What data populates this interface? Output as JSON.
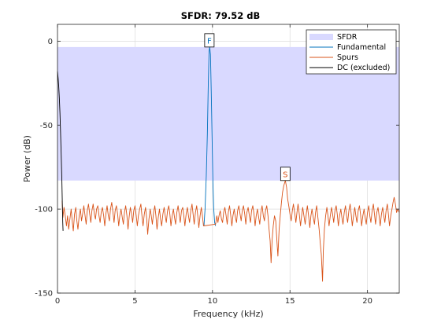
{
  "chart_data": {
    "type": "line",
    "title": "SFDR:  79.52 dB",
    "xlabel": "Frequency (kHz)",
    "ylabel": "Power (dB)",
    "xlim": [
      0,
      22.05
    ],
    "ylim": [
      -150,
      10
    ],
    "xticks": [
      0,
      5,
      10,
      15,
      20
    ],
    "yticks": [
      0,
      -50,
      -100,
      -150
    ],
    "grid": true,
    "legend_position": "top-right",
    "sfdr_band": {
      "name": "SFDR",
      "y_top": -3.5,
      "y_bottom": -83.0,
      "color": "#d9d9ff"
    },
    "markers": [
      {
        "label": "F",
        "x": 9.8,
        "y": -3.5,
        "color": "#0072bd"
      },
      {
        "label": "S",
        "x": 14.7,
        "y": -83.0,
        "color": "#d95319"
      }
    ],
    "series": [
      {
        "name": "Fundamental",
        "color": "#0072bd",
        "points": [
          [
            9.45,
            -110
          ],
          [
            9.52,
            -100
          ],
          [
            9.6,
            -80
          ],
          [
            9.67,
            -55
          ],
          [
            9.73,
            -25
          ],
          [
            9.78,
            -6
          ],
          [
            9.82,
            -3.5
          ],
          [
            9.87,
            -8
          ],
          [
            9.92,
            -30
          ],
          [
            9.98,
            -60
          ],
          [
            10.03,
            -85
          ],
          [
            10.08,
            -100
          ],
          [
            10.14,
            -108
          ],
          [
            10.2,
            -110
          ]
        ]
      },
      {
        "name": "Spurs",
        "color": "#d95319",
        "points": [
          [
            0.3,
            -95
          ],
          [
            0.35,
            -105
          ],
          [
            0.42,
            -99
          ],
          [
            0.5,
            -104
          ],
          [
            0.58,
            -110
          ],
          [
            0.65,
            -104
          ],
          [
            0.72,
            -112
          ],
          [
            0.8,
            -106
          ],
          [
            0.88,
            -100
          ],
          [
            0.95,
            -107
          ],
          [
            1.02,
            -113
          ],
          [
            1.1,
            -103
          ],
          [
            1.18,
            -99
          ],
          [
            1.25,
            -107
          ],
          [
            1.32,
            -112
          ],
          [
            1.4,
            -104
          ],
          [
            1.48,
            -100
          ],
          [
            1.55,
            -107
          ],
          [
            1.62,
            -103
          ],
          [
            1.7,
            -98
          ],
          [
            1.78,
            -104
          ],
          [
            1.85,
            -109
          ],
          [
            1.92,
            -101
          ],
          [
            2.0,
            -97
          ],
          [
            2.08,
            -103
          ],
          [
            2.15,
            -108
          ],
          [
            2.22,
            -101
          ],
          [
            2.3,
            -97
          ],
          [
            2.38,
            -103
          ],
          [
            2.45,
            -106
          ],
          [
            2.52,
            -100
          ],
          [
            2.6,
            -98
          ],
          [
            2.68,
            -104
          ],
          [
            2.75,
            -108
          ],
          [
            2.82,
            -102
          ],
          [
            2.9,
            -99
          ],
          [
            2.98,
            -104
          ],
          [
            3.05,
            -110
          ],
          [
            3.12,
            -103
          ],
          [
            3.2,
            -98
          ],
          [
            3.28,
            -104
          ],
          [
            3.35,
            -107
          ],
          [
            3.42,
            -100
          ],
          [
            3.5,
            -96
          ],
          [
            3.58,
            -102
          ],
          [
            3.65,
            -108
          ],
          [
            3.72,
            -101
          ],
          [
            3.8,
            -98
          ],
          [
            3.88,
            -103
          ],
          [
            3.95,
            -110
          ],
          [
            4.02,
            -104
          ],
          [
            4.1,
            -100
          ],
          [
            4.18,
            -105
          ],
          [
            4.25,
            -109
          ],
          [
            4.32,
            -102
          ],
          [
            4.4,
            -98
          ],
          [
            4.48,
            -104
          ],
          [
            4.55,
            -112
          ],
          [
            4.62,
            -105
          ],
          [
            4.7,
            -99
          ],
          [
            4.78,
            -103
          ],
          [
            4.85,
            -108
          ],
          [
            4.92,
            -101
          ],
          [
            5.0,
            -98
          ],
          [
            5.08,
            -104
          ],
          [
            5.15,
            -110
          ],
          [
            5.22,
            -104
          ],
          [
            5.3,
            -100
          ],
          [
            5.38,
            -97
          ],
          [
            5.45,
            -104
          ],
          [
            5.52,
            -110
          ],
          [
            5.6,
            -103
          ],
          [
            5.68,
            -99
          ],
          [
            5.75,
            -105
          ],
          [
            5.82,
            -115
          ],
          [
            5.9,
            -106
          ],
          [
            5.98,
            -100
          ],
          [
            6.05,
            -104
          ],
          [
            6.12,
            -109
          ],
          [
            6.2,
            -102
          ],
          [
            6.28,
            -98
          ],
          [
            6.35,
            -104
          ],
          [
            6.42,
            -112
          ],
          [
            6.5,
            -105
          ],
          [
            6.58,
            -100
          ],
          [
            6.65,
            -106
          ],
          [
            6.72,
            -110
          ],
          [
            6.8,
            -103
          ],
          [
            6.88,
            -99
          ],
          [
            6.95,
            -104
          ],
          [
            7.02,
            -108
          ],
          [
            7.1,
            -101
          ],
          [
            7.18,
            -98
          ],
          [
            7.25,
            -103
          ],
          [
            7.32,
            -110
          ],
          [
            7.4,
            -104
          ],
          [
            7.48,
            -100
          ],
          [
            7.55,
            -105
          ],
          [
            7.62,
            -109
          ],
          [
            7.7,
            -102
          ],
          [
            7.78,
            -98
          ],
          [
            7.85,
            -103
          ],
          [
            7.92,
            -108
          ],
          [
            8.0,
            -101
          ],
          [
            8.08,
            -99
          ],
          [
            8.15,
            -104
          ],
          [
            8.22,
            -110
          ],
          [
            8.3,
            -103
          ],
          [
            8.38,
            -99
          ],
          [
            8.45,
            -104
          ],
          [
            8.52,
            -108
          ],
          [
            8.6,
            -101
          ],
          [
            8.68,
            -97
          ],
          [
            8.75,
            -103
          ],
          [
            8.82,
            -109
          ],
          [
            8.9,
            -102
          ],
          [
            8.98,
            -98
          ],
          [
            9.05,
            -104
          ],
          [
            9.12,
            -111
          ],
          [
            9.2,
            -104
          ],
          [
            9.28,
            -99
          ],
          [
            9.35,
            -104
          ],
          [
            9.42,
            -110
          ],
          [
            10.2,
            -109
          ],
          [
            10.28,
            -104
          ],
          [
            10.35,
            -108
          ],
          [
            10.42,
            -104
          ],
          [
            10.5,
            -101
          ],
          [
            10.58,
            -106
          ],
          [
            10.65,
            -108
          ],
          [
            10.72,
            -102
          ],
          [
            10.8,
            -99
          ],
          [
            10.88,
            -104
          ],
          [
            10.95,
            -109
          ],
          [
            11.02,
            -102
          ],
          [
            11.1,
            -98
          ],
          [
            11.18,
            -104
          ],
          [
            11.25,
            -110
          ],
          [
            11.32,
            -104
          ],
          [
            11.4,
            -100
          ],
          [
            11.48,
            -105
          ],
          [
            11.55,
            -108
          ],
          [
            11.62,
            -101
          ],
          [
            11.7,
            -98
          ],
          [
            11.78,
            -103
          ],
          [
            11.85,
            -107
          ],
          [
            11.92,
            -101
          ],
          [
            12.0,
            -98
          ],
          [
            12.08,
            -103
          ],
          [
            12.15,
            -109
          ],
          [
            12.22,
            -102
          ],
          [
            12.3,
            -99
          ],
          [
            12.38,
            -104
          ],
          [
            12.45,
            -108
          ],
          [
            12.52,
            -101
          ],
          [
            12.6,
            -98
          ],
          [
            12.68,
            -103
          ],
          [
            12.75,
            -110
          ],
          [
            12.82,
            -104
          ],
          [
            12.9,
            -100
          ],
          [
            12.98,
            -105
          ],
          [
            13.05,
            -109
          ],
          [
            13.12,
            -102
          ],
          [
            13.2,
            -98
          ],
          [
            13.28,
            -104
          ],
          [
            13.35,
            -107
          ],
          [
            13.42,
            -101
          ],
          [
            13.5,
            -98
          ],
          [
            13.58,
            -104
          ],
          [
            13.65,
            -112
          ],
          [
            13.72,
            -119
          ],
          [
            13.78,
            -132
          ],
          [
            13.85,
            -118
          ],
          [
            13.92,
            -110
          ],
          [
            14.0,
            -104
          ],
          [
            14.08,
            -107
          ],
          [
            14.15,
            -118
          ],
          [
            14.22,
            -128
          ],
          [
            14.3,
            -112
          ],
          [
            14.38,
            -103
          ],
          [
            14.45,
            -96
          ],
          [
            14.52,
            -90
          ],
          [
            14.6,
            -86
          ],
          [
            14.7,
            -83
          ],
          [
            14.78,
            -87
          ],
          [
            14.85,
            -94
          ],
          [
            14.92,
            -98
          ],
          [
            15.0,
            -103
          ],
          [
            15.08,
            -107
          ],
          [
            15.15,
            -101
          ],
          [
            15.22,
            -97
          ],
          [
            15.3,
            -102
          ],
          [
            15.38,
            -108
          ],
          [
            15.45,
            -102
          ],
          [
            15.52,
            -97
          ],
          [
            15.6,
            -103
          ],
          [
            15.68,
            -110
          ],
          [
            15.75,
            -104
          ],
          [
            15.82,
            -99
          ],
          [
            15.9,
            -104
          ],
          [
            15.98,
            -109
          ],
          [
            16.05,
            -103
          ],
          [
            16.12,
            -98
          ],
          [
            16.2,
            -104
          ],
          [
            16.28,
            -111
          ],
          [
            16.35,
            -104
          ],
          [
            16.42,
            -100
          ],
          [
            16.5,
            -105
          ],
          [
            16.58,
            -109
          ],
          [
            16.65,
            -102
          ],
          [
            16.72,
            -98
          ],
          [
            16.8,
            -105
          ],
          [
            16.88,
            -112
          ],
          [
            16.95,
            -120
          ],
          [
            17.02,
            -127
          ],
          [
            17.1,
            -143
          ],
          [
            17.15,
            -125
          ],
          [
            17.22,
            -112
          ],
          [
            17.3,
            -104
          ],
          [
            17.38,
            -99
          ],
          [
            17.45,
            -104
          ],
          [
            17.52,
            -110
          ],
          [
            17.6,
            -104
          ],
          [
            17.68,
            -99
          ],
          [
            17.75,
            -103
          ],
          [
            17.82,
            -108
          ],
          [
            17.9,
            -101
          ],
          [
            17.98,
            -98
          ],
          [
            18.05,
            -103
          ],
          [
            18.12,
            -110
          ],
          [
            18.2,
            -104
          ],
          [
            18.28,
            -100
          ],
          [
            18.35,
            -105
          ],
          [
            18.42,
            -109
          ],
          [
            18.5,
            -102
          ],
          [
            18.58,
            -98
          ],
          [
            18.65,
            -104
          ],
          [
            18.72,
            -108
          ],
          [
            18.8,
            -101
          ],
          [
            18.88,
            -97
          ],
          [
            18.95,
            -103
          ],
          [
            19.02,
            -110
          ],
          [
            19.1,
            -104
          ],
          [
            19.18,
            -99
          ],
          [
            19.25,
            -104
          ],
          [
            19.32,
            -108
          ],
          [
            19.4,
            -101
          ],
          [
            19.48,
            -98
          ],
          [
            19.55,
            -103
          ],
          [
            19.62,
            -110
          ],
          [
            19.7,
            -104
          ],
          [
            19.78,
            -100
          ],
          [
            19.85,
            -105
          ],
          [
            19.92,
            -109
          ],
          [
            20.0,
            -102
          ],
          [
            20.08,
            -98
          ],
          [
            20.15,
            -104
          ],
          [
            20.22,
            -108
          ],
          [
            20.3,
            -101
          ],
          [
            20.38,
            -97
          ],
          [
            20.45,
            -103
          ],
          [
            20.52,
            -109
          ],
          [
            20.6,
            -102
          ],
          [
            20.68,
            -99
          ],
          [
            20.75,
            -104
          ],
          [
            20.82,
            -110
          ],
          [
            20.9,
            -103
          ],
          [
            20.98,
            -99
          ],
          [
            21.05,
            -104
          ],
          [
            21.12,
            -108
          ],
          [
            21.2,
            -101
          ],
          [
            21.28,
            -97
          ],
          [
            21.35,
            -103
          ],
          [
            21.42,
            -110
          ],
          [
            21.5,
            -104
          ],
          [
            21.58,
            -100
          ],
          [
            21.65,
            -96
          ],
          [
            21.72,
            -93
          ],
          [
            21.8,
            -97
          ],
          [
            21.88,
            -102
          ],
          [
            21.95,
            -100
          ],
          [
            22.05,
            -102
          ]
        ]
      },
      {
        "name": "DC (excluded)",
        "color": "#000000",
        "points": [
          [
            0.0,
            -18
          ],
          [
            0.04,
            -22
          ],
          [
            0.08,
            -27
          ],
          [
            0.12,
            -34
          ],
          [
            0.16,
            -43
          ],
          [
            0.2,
            -55
          ],
          [
            0.24,
            -68
          ],
          [
            0.28,
            -82
          ],
          [
            0.31,
            -95
          ],
          [
            0.34,
            -108
          ],
          [
            0.36,
            -113
          ]
        ]
      }
    ]
  }
}
